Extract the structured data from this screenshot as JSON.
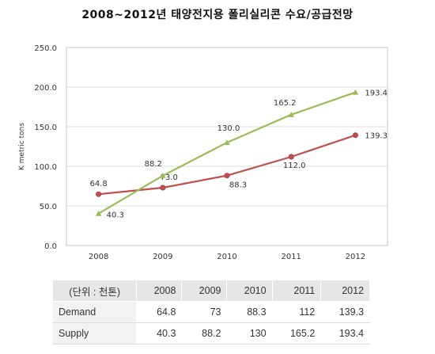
{
  "title": "2008~2012년 태양전지용 폴리실리콘 수요/공급전망",
  "chart_data": {
    "type": "line",
    "x": [
      "2008",
      "2009",
      "2010",
      "2011",
      "2012"
    ],
    "ylabel": "K metric tons",
    "ylim": [
      0,
      250
    ],
    "yticks": [
      "0.0",
      "50.0",
      "100.0",
      "150.0",
      "200.0",
      "250.0"
    ],
    "grid": true,
    "series": [
      {
        "name": "Demand",
        "color": "#c0504d",
        "values": [
          64.8,
          73.0,
          88.3,
          112.0,
          139.3
        ],
        "labels": [
          "64.8",
          "73.0",
          "88.3",
          "112.0",
          "139.3"
        ]
      },
      {
        "name": "Supply",
        "color": "#9bbb59",
        "values": [
          40.3,
          88.2,
          130.0,
          165.2,
          193.4
        ],
        "labels": [
          "40.3",
          "88.2",
          "130.0",
          "165.2",
          "193.4"
        ]
      }
    ]
  },
  "table": {
    "unit_header": "(단위 : 천톤)",
    "columns": [
      "2008",
      "2009",
      "2010",
      "2011",
      "2012"
    ],
    "rows": [
      {
        "label": "Demand",
        "cells": [
          "64.8",
          "73",
          "88.3",
          "112",
          "139.3"
        ]
      },
      {
        "label": "Supply",
        "cells": [
          "40.3",
          "88.2",
          "130",
          "165.2",
          "193.4"
        ]
      }
    ]
  }
}
